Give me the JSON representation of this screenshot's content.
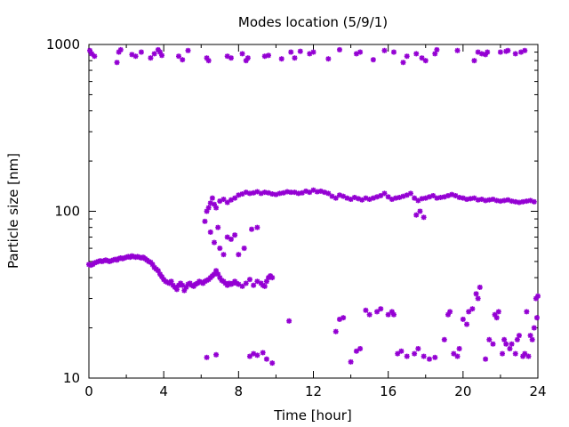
{
  "chart_data": {
    "type": "scatter",
    "title": "Modes location (5/9/1)",
    "xlabel": "Time [hour]",
    "ylabel": "Particle size [nm]",
    "xlim": [
      0,
      24
    ],
    "ylim": [
      10,
      1000
    ],
    "yscale": "log",
    "grid": false,
    "marker_color": "#9400d3",
    "x_ticks": [
      0,
      4,
      8,
      12,
      16,
      20,
      24
    ],
    "y_ticks": [
      10,
      100,
      1000
    ],
    "series": [
      {
        "name": "",
        "points": [
          [
            0.05,
            920
          ],
          [
            0.15,
            880
          ],
          [
            0.3,
            850
          ],
          [
            1.5,
            780
          ],
          [
            1.6,
            900
          ],
          [
            1.7,
            930
          ],
          [
            2.3,
            870
          ],
          [
            2.5,
            850
          ],
          [
            2.8,
            900
          ],
          [
            3.3,
            830
          ],
          [
            3.5,
            880
          ],
          [
            3.7,
            930
          ],
          [
            3.8,
            900
          ],
          [
            3.9,
            860
          ],
          [
            4.8,
            850
          ],
          [
            5.0,
            810
          ],
          [
            5.3,
            920
          ],
          [
            6.3,
            830
          ],
          [
            6.4,
            800
          ],
          [
            7.4,
            850
          ],
          [
            7.6,
            830
          ],
          [
            8.2,
            880
          ],
          [
            8.4,
            800
          ],
          [
            8.5,
            830
          ],
          [
            9.4,
            850
          ],
          [
            9.6,
            860
          ],
          [
            10.3,
            820
          ],
          [
            10.8,
            900
          ],
          [
            11.0,
            830
          ],
          [
            11.3,
            910
          ],
          [
            11.8,
            880
          ],
          [
            12.0,
            900
          ],
          [
            12.8,
            820
          ],
          [
            13.4,
            930
          ],
          [
            14.3,
            880
          ],
          [
            14.5,
            900
          ],
          [
            15.2,
            810
          ],
          [
            15.8,
            920
          ],
          [
            16.3,
            900
          ],
          [
            16.8,
            780
          ],
          [
            17.0,
            850
          ],
          [
            17.5,
            880
          ],
          [
            17.8,
            830
          ],
          [
            18.0,
            800
          ],
          [
            18.5,
            880
          ],
          [
            18.6,
            930
          ],
          [
            19.7,
            920
          ],
          [
            20.6,
            800
          ],
          [
            20.8,
            900
          ],
          [
            21.0,
            880
          ],
          [
            21.2,
            870
          ],
          [
            21.3,
            900
          ],
          [
            22.0,
            900
          ],
          [
            22.3,
            910
          ],
          [
            22.4,
            920
          ],
          [
            22.8,
            880
          ],
          [
            23.1,
            900
          ],
          [
            23.3,
            920
          ],
          [
            0.0,
            48
          ],
          [
            0.1,
            47.5
          ],
          [
            0.2,
            48
          ],
          [
            0.3,
            49
          ],
          [
            0.4,
            49.5
          ],
          [
            0.5,
            50
          ],
          [
            0.6,
            50.5
          ],
          [
            0.7,
            50
          ],
          [
            0.8,
            50.5
          ],
          [
            0.9,
            51
          ],
          [
            1.0,
            50.5
          ],
          [
            1.1,
            50
          ],
          [
            1.2,
            50.5
          ],
          [
            1.3,
            51
          ],
          [
            1.4,
            51.5
          ],
          [
            1.5,
            51
          ],
          [
            1.6,
            52
          ],
          [
            1.7,
            52.5
          ],
          [
            1.8,
            52
          ],
          [
            1.9,
            52.5
          ],
          [
            2.0,
            53
          ],
          [
            2.1,
            53.5
          ],
          [
            2.2,
            53
          ],
          [
            2.3,
            54
          ],
          [
            2.4,
            53.5
          ],
          [
            2.5,
            53
          ],
          [
            2.6,
            53.5
          ],
          [
            2.7,
            53
          ],
          [
            2.8,
            52.5
          ],
          [
            2.9,
            53
          ],
          [
            3.0,
            52
          ],
          [
            3.1,
            51
          ],
          [
            3.2,
            50
          ],
          [
            3.3,
            49.5
          ],
          [
            3.4,
            48
          ],
          [
            3.5,
            46
          ],
          [
            3.6,
            45
          ],
          [
            3.7,
            44
          ],
          [
            3.8,
            42
          ],
          [
            3.9,
            40.5
          ],
          [
            4.0,
            39
          ],
          [
            4.1,
            38
          ],
          [
            4.2,
            37.5
          ],
          [
            4.3,
            37
          ],
          [
            4.4,
            38
          ],
          [
            4.5,
            36
          ],
          [
            4.6,
            35
          ],
          [
            4.7,
            34
          ],
          [
            4.8,
            36
          ],
          [
            4.9,
            37
          ],
          [
            5.0,
            36
          ],
          [
            5.1,
            33.5
          ],
          [
            5.2,
            35
          ],
          [
            5.3,
            36.5
          ],
          [
            5.4,
            37
          ],
          [
            5.5,
            36
          ],
          [
            5.6,
            35.5
          ],
          [
            5.7,
            36.5
          ],
          [
            5.8,
            37
          ],
          [
            5.9,
            38
          ],
          [
            6.0,
            37.5
          ],
          [
            6.1,
            37
          ],
          [
            6.2,
            38
          ],
          [
            6.3,
            38.5
          ],
          [
            6.4,
            39
          ],
          [
            6.5,
            40
          ],
          [
            6.6,
            41
          ],
          [
            6.7,
            42
          ],
          [
            6.8,
            44
          ],
          [
            6.9,
            42
          ],
          [
            7.0,
            40
          ],
          [
            7.1,
            38.5
          ],
          [
            7.2,
            38
          ],
          [
            7.3,
            37
          ],
          [
            7.4,
            36
          ],
          [
            7.5,
            37
          ],
          [
            7.6,
            36.5
          ],
          [
            7.7,
            37
          ],
          [
            7.8,
            38
          ],
          [
            7.9,
            37
          ],
          [
            8.0,
            36.5
          ],
          [
            8.2,
            35.5
          ],
          [
            8.4,
            37
          ],
          [
            8.6,
            39
          ],
          [
            8.8,
            36
          ],
          [
            9.0,
            38
          ],
          [
            9.2,
            37
          ],
          [
            9.3,
            36
          ],
          [
            9.4,
            35.5
          ],
          [
            9.5,
            38
          ],
          [
            9.6,
            40
          ],
          [
            9.7,
            41
          ],
          [
            9.8,
            40
          ],
          [
            6.2,
            87
          ],
          [
            6.3,
            100
          ],
          [
            6.4,
            105
          ],
          [
            6.5,
            112
          ],
          [
            6.6,
            120
          ],
          [
            6.7,
            110
          ],
          [
            6.8,
            105
          ],
          [
            7.0,
            115
          ],
          [
            7.2,
            118
          ],
          [
            7.4,
            113
          ],
          [
            7.6,
            117
          ],
          [
            7.8,
            120
          ],
          [
            8.0,
            125
          ],
          [
            8.2,
            127
          ],
          [
            8.4,
            130
          ],
          [
            8.6,
            128
          ],
          [
            8.8,
            129
          ],
          [
            9.0,
            131
          ],
          [
            9.2,
            128
          ],
          [
            9.4,
            130
          ],
          [
            9.6,
            129
          ],
          [
            9.8,
            127
          ],
          [
            10.0,
            126
          ],
          [
            10.2,
            128
          ],
          [
            10.4,
            129
          ],
          [
            10.6,
            131
          ],
          [
            10.8,
            130
          ],
          [
            11.0,
            130
          ],
          [
            11.2,
            128
          ],
          [
            11.4,
            129
          ],
          [
            11.6,
            132
          ],
          [
            11.8,
            130
          ],
          [
            12.0,
            134
          ],
          [
            12.2,
            131
          ],
          [
            12.4,
            132
          ],
          [
            12.6,
            130
          ],
          [
            12.8,
            128
          ],
          [
            13.0,
            123
          ],
          [
            13.2,
            120
          ],
          [
            13.4,
            125
          ],
          [
            13.6,
            123
          ],
          [
            13.8,
            120
          ],
          [
            14.0,
            118
          ],
          [
            14.2,
            121
          ],
          [
            14.4,
            119
          ],
          [
            14.6,
            117
          ],
          [
            14.8,
            120
          ],
          [
            15.0,
            118
          ],
          [
            15.2,
            120
          ],
          [
            15.4,
            122
          ],
          [
            15.6,
            124
          ],
          [
            15.8,
            128
          ],
          [
            16.0,
            122
          ],
          [
            16.2,
            118
          ],
          [
            16.4,
            120
          ],
          [
            16.6,
            121
          ],
          [
            16.8,
            123
          ],
          [
            17.0,
            125
          ],
          [
            17.2,
            128
          ],
          [
            17.4,
            120
          ],
          [
            17.6,
            116
          ],
          [
            17.8,
            119
          ],
          [
            18.0,
            120
          ],
          [
            18.2,
            122
          ],
          [
            18.4,
            124
          ],
          [
            18.6,
            120
          ],
          [
            18.8,
            121
          ],
          [
            19.0,
            122
          ],
          [
            19.2,
            124
          ],
          [
            19.4,
            126
          ],
          [
            19.6,
            124
          ],
          [
            19.8,
            121
          ],
          [
            20.0,
            120
          ],
          [
            20.2,
            118
          ],
          [
            20.4,
            119
          ],
          [
            20.6,
            120
          ],
          [
            20.8,
            117
          ],
          [
            21.0,
            118
          ],
          [
            21.2,
            116
          ],
          [
            21.4,
            117
          ],
          [
            21.6,
            118
          ],
          [
            21.8,
            116
          ],
          [
            22.0,
            115
          ],
          [
            22.2,
            116
          ],
          [
            22.4,
            117
          ],
          [
            22.6,
            115
          ],
          [
            22.8,
            114
          ],
          [
            23.0,
            113
          ],
          [
            23.2,
            114
          ],
          [
            23.4,
            115
          ],
          [
            23.6,
            116
          ],
          [
            23.8,
            114
          ],
          [
            6.5,
            75
          ],
          [
            6.7,
            65
          ],
          [
            6.9,
            80
          ],
          [
            7.0,
            60
          ],
          [
            7.2,
            55
          ],
          [
            7.4,
            70
          ],
          [
            7.6,
            68
          ],
          [
            7.8,
            72
          ],
          [
            8.0,
            55
          ],
          [
            8.3,
            60
          ],
          [
            8.7,
            78
          ],
          [
            9.0,
            80
          ],
          [
            17.5,
            95
          ],
          [
            17.7,
            100
          ],
          [
            17.9,
            92
          ],
          [
            6.3,
            13.3
          ],
          [
            6.8,
            13.8
          ],
          [
            8.6,
            13.5
          ],
          [
            8.8,
            14
          ],
          [
            9.0,
            13.7
          ],
          [
            9.3,
            14.2
          ],
          [
            9.5,
            13
          ],
          [
            9.8,
            12.3
          ],
          [
            10.7,
            22
          ],
          [
            13.2,
            19
          ],
          [
            13.4,
            22.5
          ],
          [
            13.6,
            23
          ],
          [
            14.0,
            12.5
          ],
          [
            14.3,
            14.5
          ],
          [
            14.5,
            15
          ],
          [
            14.8,
            25.5
          ],
          [
            15.0,
            24
          ],
          [
            15.4,
            25
          ],
          [
            15.6,
            26
          ],
          [
            16.0,
            24
          ],
          [
            16.2,
            25
          ],
          [
            16.3,
            24
          ],
          [
            16.5,
            14
          ],
          [
            16.7,
            14.5
          ],
          [
            17.0,
            13.5
          ],
          [
            17.4,
            14
          ],
          [
            17.6,
            15
          ],
          [
            17.9,
            13.5
          ],
          [
            18.2,
            13
          ],
          [
            18.5,
            13.3
          ],
          [
            19.0,
            17
          ],
          [
            19.2,
            24
          ],
          [
            19.3,
            25
          ],
          [
            19.5,
            14
          ],
          [
            19.7,
            13.5
          ],
          [
            19.8,
            15
          ],
          [
            20.0,
            22.5
          ],
          [
            20.2,
            21
          ],
          [
            20.3,
            25
          ],
          [
            20.5,
            26
          ],
          [
            20.7,
            32
          ],
          [
            20.8,
            30
          ],
          [
            20.9,
            35
          ],
          [
            21.2,
            13
          ],
          [
            21.4,
            17
          ],
          [
            21.6,
            16
          ],
          [
            21.7,
            24
          ],
          [
            21.8,
            23
          ],
          [
            21.9,
            25
          ],
          [
            22.1,
            14
          ],
          [
            22.2,
            17
          ],
          [
            22.3,
            16
          ],
          [
            22.5,
            15
          ],
          [
            22.6,
            16
          ],
          [
            22.8,
            14
          ],
          [
            22.9,
            17
          ],
          [
            23.0,
            18
          ],
          [
            23.2,
            13.5
          ],
          [
            23.3,
            14
          ],
          [
            23.4,
            25
          ],
          [
            23.5,
            13.5
          ],
          [
            23.6,
            18
          ],
          [
            23.7,
            17
          ],
          [
            23.8,
            20
          ],
          [
            23.9,
            30
          ],
          [
            24.0,
            31
          ],
          [
            23.95,
            23
          ]
        ]
      }
    ]
  }
}
